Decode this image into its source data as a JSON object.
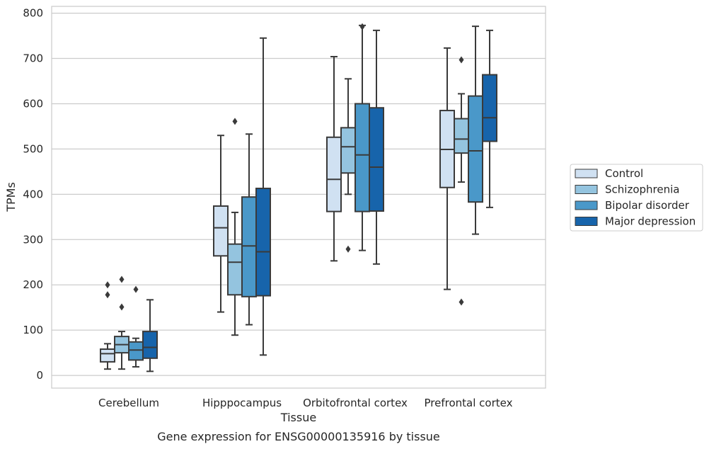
{
  "chart_data": {
    "type": "boxplot",
    "title": "Gene expression for ENSG00000135916 by tissue",
    "xlabel": "Tissue",
    "ylabel": "TPMs",
    "ylim": [
      -28,
      815
    ],
    "yticks": [
      0,
      100,
      200,
      300,
      400,
      500,
      600,
      700,
      800
    ],
    "grid": "horizontal",
    "legend_position": "right",
    "categories": [
      "Cerebellum",
      "Hipppocampus",
      "Orbitofrontal cortex",
      "Prefrontal cortex"
    ],
    "series": [
      {
        "name": "Control",
        "color": "#d0e1f2",
        "boxes": [
          {
            "whislo": 14,
            "q1": 30,
            "med": 48,
            "q3": 58,
            "whishi": 70,
            "fliers": [
              200,
              178
            ]
          },
          {
            "whislo": 140,
            "q1": 264,
            "med": 326,
            "q3": 374,
            "whishi": 530,
            "fliers": []
          },
          {
            "whislo": 253,
            "q1": 362,
            "med": 433,
            "q3": 526,
            "whishi": 704,
            "fliers": []
          },
          {
            "whislo": 190,
            "q1": 415,
            "med": 499,
            "q3": 585,
            "whishi": 723,
            "fliers": []
          }
        ]
      },
      {
        "name": "Schizophrenia",
        "color": "#94c4df",
        "boxes": [
          {
            "whislo": 14,
            "q1": 50,
            "med": 68,
            "q3": 86,
            "whishi": 97,
            "fliers": [
              212,
              151
            ]
          },
          {
            "whislo": 89,
            "q1": 178,
            "med": 250,
            "q3": 290,
            "whishi": 360,
            "fliers": [
              561
            ]
          },
          {
            "whislo": 400,
            "q1": 447,
            "med": 505,
            "q3": 547,
            "whishi": 655,
            "fliers": [
              279
            ]
          },
          {
            "whislo": 427,
            "q1": 491,
            "med": 522,
            "q3": 567,
            "whishi": 622,
            "fliers": [
              697,
              162
            ]
          }
        ]
      },
      {
        "name": "Bipolar disorder",
        "color": "#4a98c9",
        "boxes": [
          {
            "whislo": 19,
            "q1": 34,
            "med": 56,
            "q3": 74,
            "whishi": 82,
            "fliers": [
              190
            ]
          },
          {
            "whislo": 112,
            "q1": 174,
            "med": 286,
            "q3": 394,
            "whishi": 533,
            "fliers": []
          },
          {
            "whislo": 276,
            "q1": 362,
            "med": 487,
            "q3": 600,
            "whishi": 773,
            "fliers": [
              770
            ]
          },
          {
            "whislo": 312,
            "q1": 383,
            "med": 496,
            "q3": 617,
            "whishi": 771,
            "fliers": []
          }
        ]
      },
      {
        "name": "Major depression",
        "color": "#1764ab",
        "boxes": [
          {
            "whislo": 9,
            "q1": 38,
            "med": 62,
            "q3": 97,
            "whishi": 167,
            "fliers": []
          },
          {
            "whislo": 45,
            "q1": 176,
            "med": 273,
            "q3": 413,
            "whishi": 745,
            "fliers": []
          },
          {
            "whislo": 246,
            "q1": 363,
            "med": 460,
            "q3": 591,
            "whishi": 762,
            "fliers": []
          },
          {
            "whislo": 371,
            "q1": 517,
            "med": 569,
            "q3": 664,
            "whishi": 762,
            "fliers": []
          }
        ]
      }
    ]
  }
}
